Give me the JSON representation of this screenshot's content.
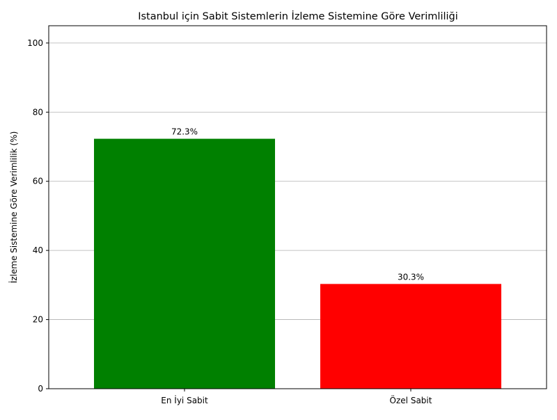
{
  "chart_data": {
    "type": "bar",
    "title": "Istanbul için Sabit Sistemlerin İzleme Sistemine Göre Verimliliği",
    "xlabel": "",
    "ylabel": "İzleme Sistemine Göre Verimlilik (%)",
    "categories": [
      "En İyi Sabit",
      "Özel Sabit"
    ],
    "values": [
      72.3,
      30.3
    ],
    "data_labels": [
      "72.3%",
      "30.3%"
    ],
    "colors": [
      "#008000",
      "#ff0000"
    ],
    "ylim": [
      0,
      105
    ],
    "yticks": [
      0,
      20,
      40,
      60,
      80,
      100
    ],
    "ytick_labels": [
      "0",
      "20",
      "40",
      "60",
      "80",
      "100"
    ],
    "grid": "y-axis horizontal lines",
    "legend": "none"
  }
}
